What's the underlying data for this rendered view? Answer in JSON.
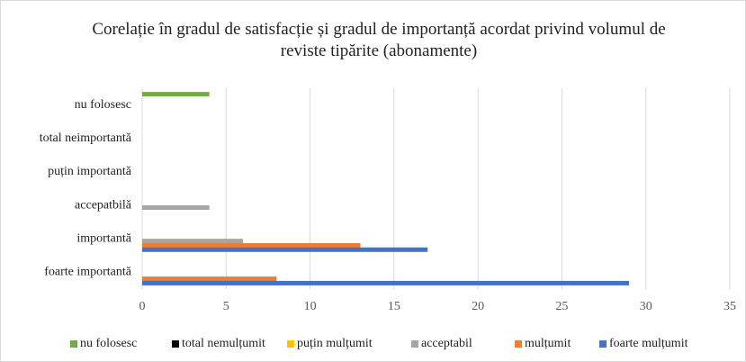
{
  "chart_data": {
    "type": "barh",
    "title": "Corelație în gradul de satisfacție și gradul de importanță acordat privind volumul de reviste tipărite (abonamente)",
    "categories": [
      "foarte importantă",
      "importantă",
      "accepatbilă",
      "puțin importantă",
      "total neimportantă",
      "nu folosesc"
    ],
    "series": [
      {
        "name": "nu folosesc",
        "color": "#70ad47",
        "values": [
          0,
          0,
          0,
          0,
          0,
          4
        ]
      },
      {
        "name": "total nemulțumit",
        "color": "#000000",
        "values": [
          0,
          0,
          0,
          0,
          0,
          0
        ]
      },
      {
        "name": "puțin mulțumit",
        "color": "#ffc000",
        "values": [
          0,
          0,
          0,
          0,
          0,
          0
        ]
      },
      {
        "name": "acceptabil",
        "color": "#a5a5a5",
        "values": [
          0,
          6,
          4,
          0,
          0,
          0
        ]
      },
      {
        "name": "mulțumit",
        "color": "#ed7d31",
        "values": [
          8,
          13,
          0,
          0,
          0,
          0
        ]
      },
      {
        "name": "foarte mulțumit",
        "color": "#4472c4",
        "values": [
          29,
          17,
          0,
          0,
          0,
          0
        ]
      }
    ],
    "xlim": [
      0,
      35
    ],
    "xticks": [
      0,
      5,
      10,
      15,
      20,
      25,
      30,
      35
    ],
    "grid": true,
    "legend": "bottom"
  }
}
